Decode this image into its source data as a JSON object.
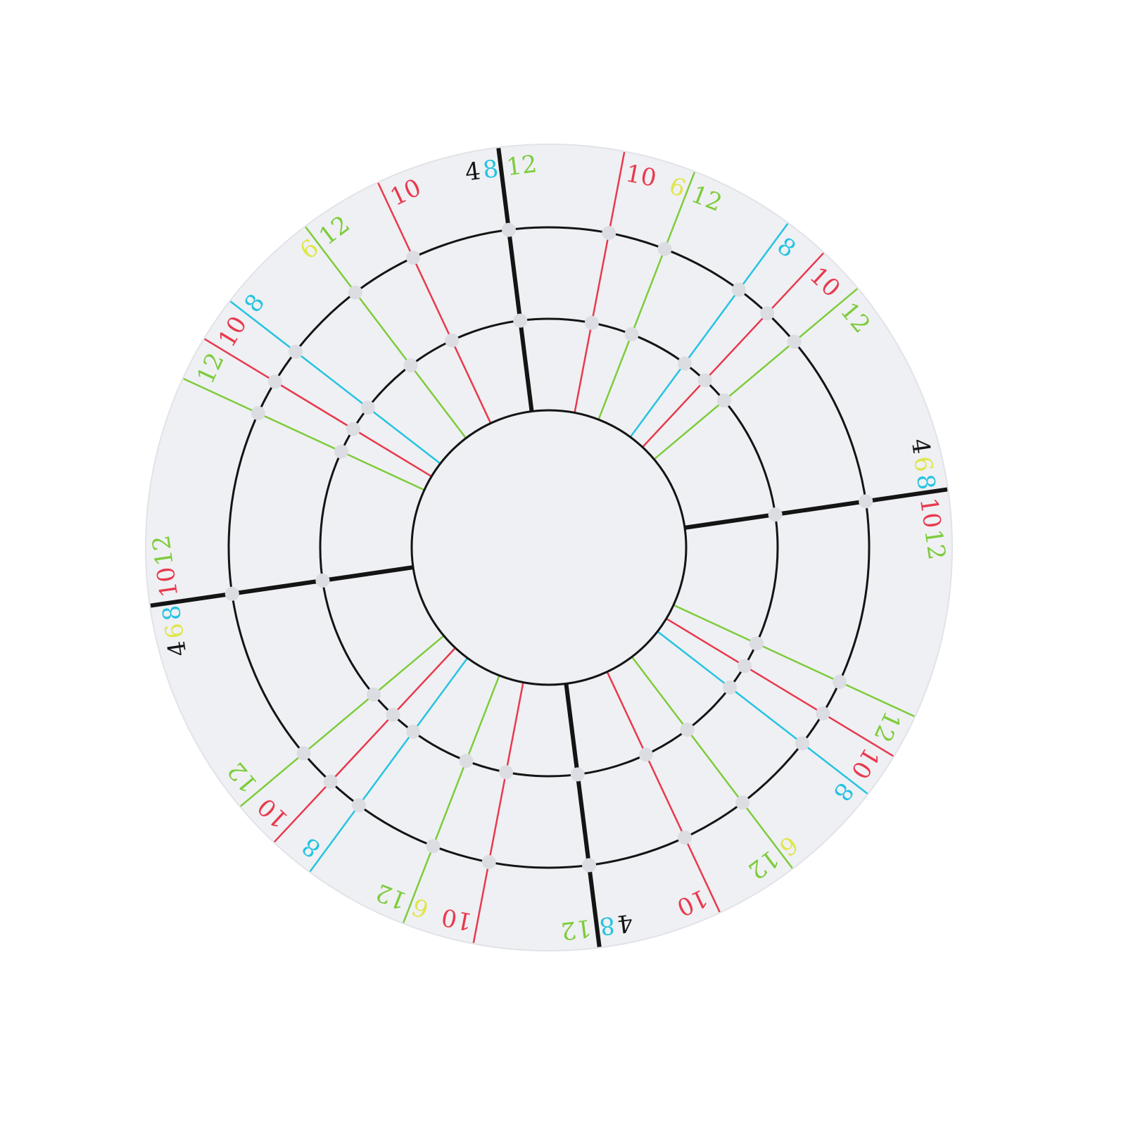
{
  "colors": {
    "black": "#141414",
    "red": "#e8394d",
    "green": "#7dcc3c",
    "cyan": "#25c3e2",
    "yellow": "#dfe64a",
    "disc": "#eff0f3",
    "dot": "#dcdde2"
  },
  "rotational_symmetry": "180-degree",
  "lines": [
    {
      "angle": -7.2,
      "color": "black",
      "before": [
        [
          "4",
          "black"
        ],
        [
          "8",
          "cyan"
        ]
      ],
      "after": [
        [
          "12",
          "green"
        ]
      ]
    },
    {
      "angle": -25.1,
      "color": "red",
      "before": [],
      "after": [
        [
          "10",
          "red"
        ]
      ]
    },
    {
      "angle": -37.2,
      "color": "green",
      "before": [
        [
          "6",
          "yellow"
        ]
      ],
      "after": [
        [
          "12",
          "green"
        ]
      ]
    },
    {
      "angle": -52.3,
      "color": "cyan",
      "before": [],
      "after": [
        [
          "8",
          "cyan"
        ]
      ]
    },
    {
      "angle": -58.8,
      "color": "red",
      "before": [],
      "after": [
        [
          "10",
          "red"
        ]
      ]
    },
    {
      "angle": -65.2,
      "color": "green",
      "before": [],
      "after": [
        [
          "12",
          "green"
        ]
      ]
    },
    {
      "angle": 10.8,
      "color": "red",
      "before": [],
      "after": [
        [
          "10",
          "red"
        ]
      ]
    },
    {
      "angle": 21.2,
      "color": "green",
      "before": [
        [
          "6",
          "yellow"
        ]
      ],
      "after": [
        [
          "12",
          "green"
        ]
      ]
    },
    {
      "angle": 36.4,
      "color": "cyan",
      "before": [],
      "after": [
        [
          "8",
          "cyan"
        ]
      ]
    },
    {
      "angle": 43.0,
      "color": "red",
      "before": [],
      "after": [
        [
          "10",
          "red"
        ]
      ]
    },
    {
      "angle": 50.0,
      "color": "green",
      "before": [],
      "after": [
        [
          "12",
          "green"
        ]
      ]
    },
    {
      "angle": 81.7,
      "color": "black",
      "before": [
        [
          "4",
          "black"
        ],
        [
          "6",
          "yellow"
        ],
        [
          "8",
          "cyan"
        ]
      ],
      "after": [
        [
          "10",
          "red"
        ],
        [
          "12",
          "green"
        ]
      ]
    }
  ]
}
